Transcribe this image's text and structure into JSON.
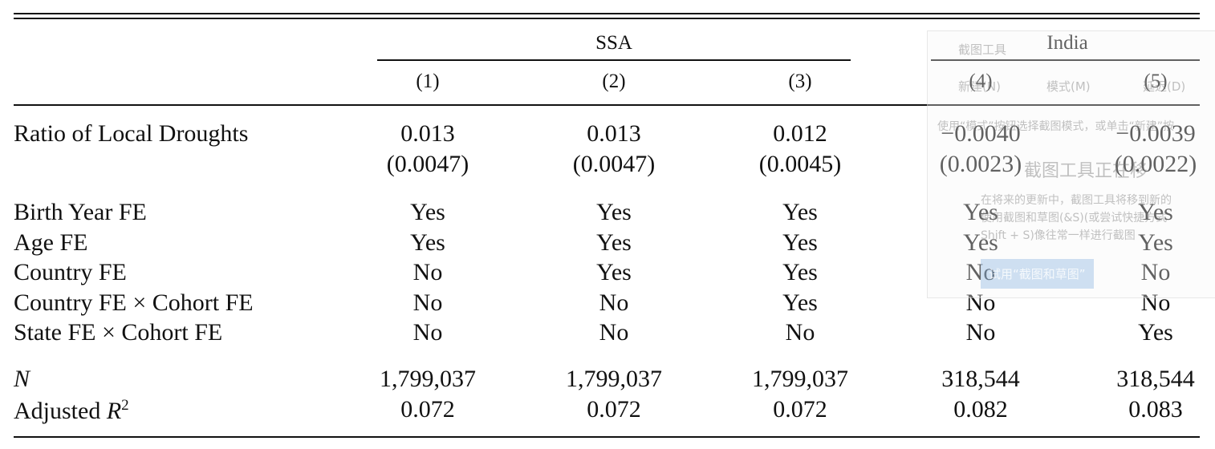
{
  "table": {
    "groups": [
      {
        "label": "SSA"
      },
      {
        "label": "India"
      }
    ],
    "columns": [
      "(1)",
      "(2)",
      "(3)",
      "(4)",
      "(5)"
    ],
    "coefficient_rows": [
      {
        "label": "Ratio of Local Droughts",
        "estimates": [
          "0.013",
          "0.013",
          "0.012",
          "−0.0040",
          "−0.0039"
        ],
        "standard_errors": [
          "(0.0047)",
          "(0.0047)",
          "(0.0045)",
          "(0.0023)",
          "(0.0022)"
        ]
      }
    ],
    "fixed_effect_rows": [
      {
        "label": "Birth Year FE",
        "cells": [
          "Yes",
          "Yes",
          "Yes",
          "Yes",
          "Yes"
        ]
      },
      {
        "label": "Age FE",
        "cells": [
          "Yes",
          "Yes",
          "Yes",
          "Yes",
          "Yes"
        ]
      },
      {
        "label": "Country FE",
        "cells": [
          "No",
          "Yes",
          "Yes",
          "No",
          "No"
        ]
      },
      {
        "label": "Country FE × Cohort FE",
        "cells": [
          "No",
          "No",
          "Yes",
          "No",
          "No"
        ]
      },
      {
        "label": "State FE × Cohort FE",
        "cells": [
          "No",
          "No",
          "No",
          "No",
          "Yes"
        ]
      }
    ],
    "stat_rows": [
      {
        "symbol": "N",
        "cells": [
          "1,799,037",
          "1,799,037",
          "1,799,037",
          "318,544",
          "318,544"
        ]
      },
      {
        "label": "Adjusted",
        "symbol": "R",
        "superscript": "2",
        "cells": [
          "0.072",
          "0.072",
          "0.072",
          "0.082",
          "0.083"
        ]
      }
    ]
  },
  "overlay": {
    "title": "截图工具",
    "toolbar": [
      "新建(N)",
      "模式(M)",
      "延迟(D)"
    ],
    "hint": "使用“模式”按钮选择截图模式，或单击“新建”按",
    "heading": "截图工具正在移",
    "body": [
      "在将来的更新中，截图工具将移到新的",
      "使用截图和草图(&S)(或尝试快捷方式",
      "Shift + S)像往常一样进行截图"
    ],
    "button": "试用“截图和草图”"
  }
}
